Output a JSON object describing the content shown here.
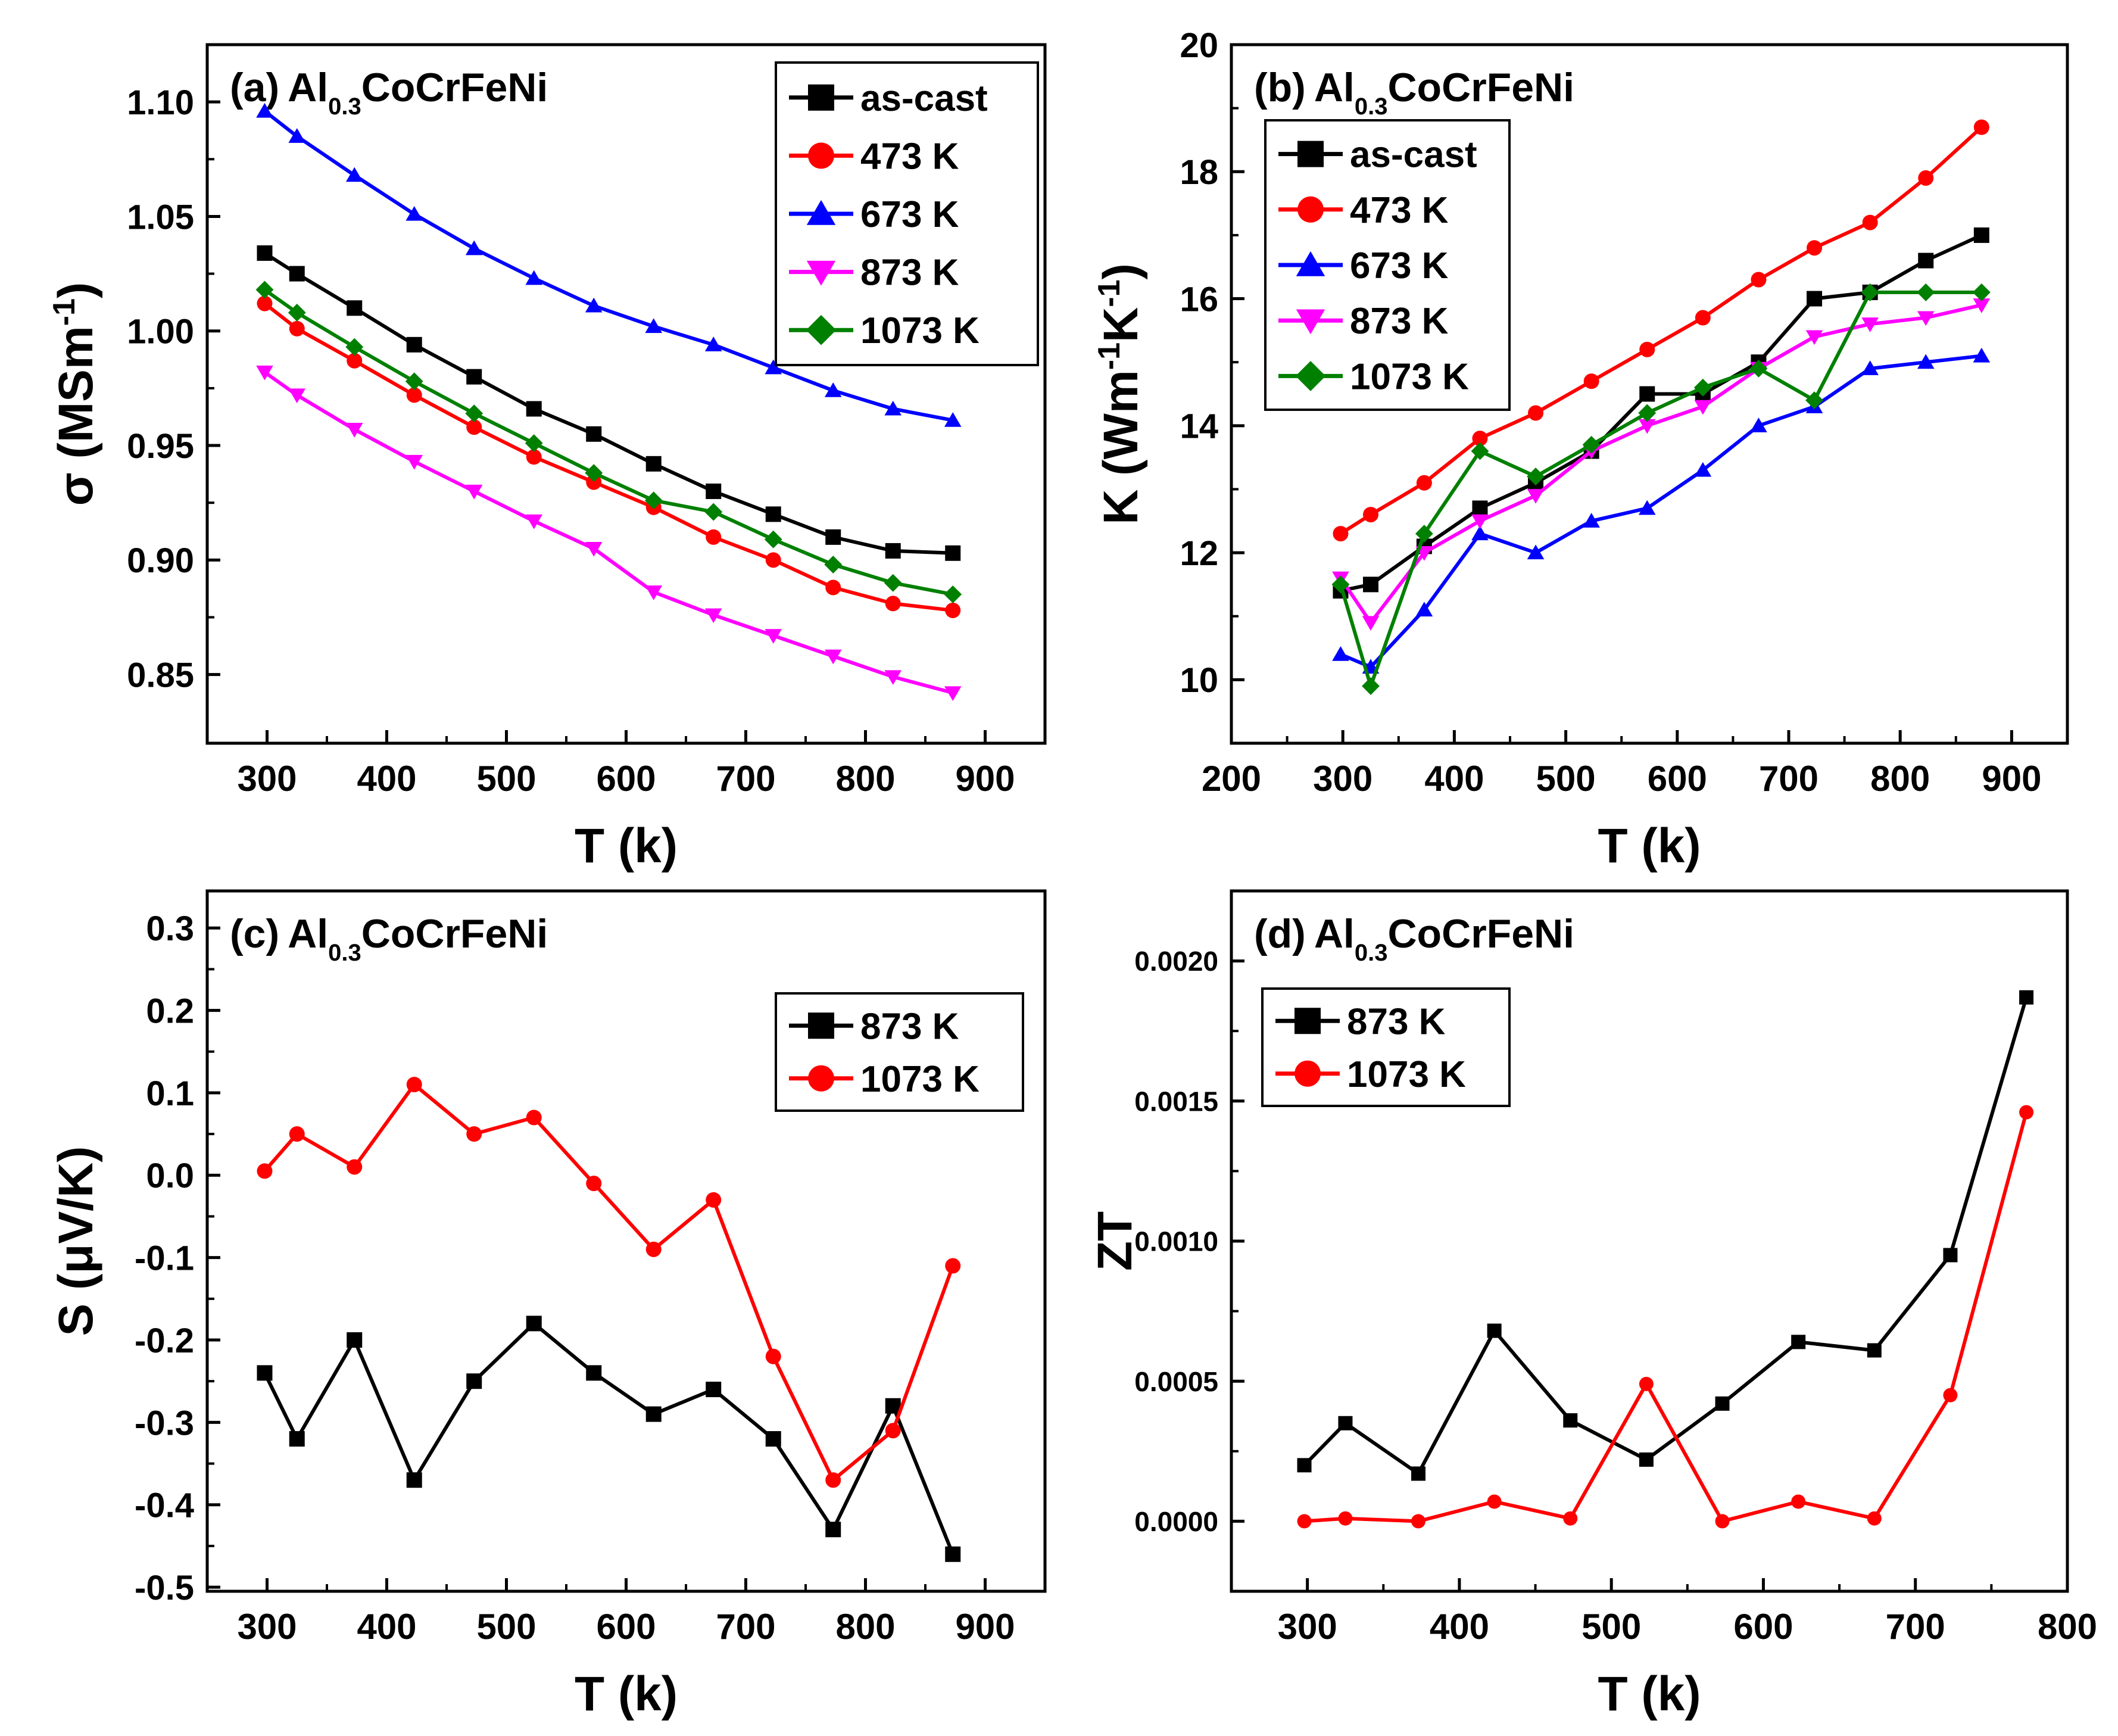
{
  "chart_data": [
    {
      "panel": "(a)",
      "type": "line",
      "title_main": "Al",
      "title_sub": "0.3",
      "title_rest": "CoCrFeNi",
      "xlabel": "T (k)",
      "ylabel": "σ (MSm",
      "ylabel_sup": "-1",
      "ylabel_end": ")",
      "xlim": [
        250,
        950
      ],
      "ylim": [
        0.82,
        1.125
      ],
      "xticks": [
        300,
        400,
        500,
        600,
        700,
        800,
        900
      ],
      "yticks": [
        0.85,
        0.9,
        0.95,
        1.0,
        1.05,
        1.1
      ],
      "ytick_decimals": 2,
      "legend_position": "top-right",
      "x": [
        298,
        325,
        373,
        423,
        473,
        523,
        573,
        623,
        673,
        723,
        773,
        823,
        873
      ],
      "series": [
        {
          "name": "as-cast",
          "color": "#000000",
          "marker": "square",
          "values": [
            1.034,
            1.025,
            1.01,
            0.994,
            0.98,
            0.966,
            0.955,
            0.942,
            0.93,
            0.92,
            0.91,
            0.904,
            0.903
          ]
        },
        {
          "name": "473 K",
          "color": "#ff0000",
          "marker": "circle",
          "values": [
            1.012,
            1.001,
            0.987,
            0.972,
            0.958,
            0.945,
            0.934,
            0.923,
            0.91,
            0.9,
            0.888,
            0.881,
            0.878
          ]
        },
        {
          "name": "673 K",
          "color": "#0000ff",
          "marker": "triangle-up",
          "values": [
            1.096,
            1.085,
            1.068,
            1.051,
            1.036,
            1.023,
            1.011,
            1.002,
            0.994,
            0.984,
            0.974,
            0.966,
            0.961
          ]
        },
        {
          "name": "873 K",
          "color": "#ff00ff",
          "marker": "triangle-down",
          "values": [
            0.982,
            0.972,
            0.957,
            0.943,
            0.93,
            0.917,
            0.905,
            0.886,
            0.876,
            0.867,
            0.858,
            0.849,
            0.842
          ]
        },
        {
          "name": "1073 K",
          "color": "#008000",
          "marker": "diamond",
          "values": [
            1.018,
            1.008,
            0.993,
            0.978,
            0.964,
            0.951,
            0.938,
            0.926,
            0.921,
            0.909,
            0.898,
            0.89,
            0.885
          ]
        }
      ]
    },
    {
      "panel": "(b)",
      "type": "line",
      "title_main": "Al",
      "title_sub": "0.3",
      "title_rest": "CoCrFeNi",
      "xlabel": "T (k)",
      "ylabel": "K (Wm",
      "ylabel_sup": "-1",
      "ylabel_mid": "K",
      "ylabel_sup2": "-1",
      "ylabel_end": ")",
      "xlim": [
        200,
        950
      ],
      "ylim": [
        9.0,
        20.0
      ],
      "xticks": [
        200,
        300,
        400,
        500,
        600,
        700,
        800,
        900
      ],
      "yticks": [
        10,
        12,
        14,
        16,
        18,
        20
      ],
      "ytick_decimals": 0,
      "legend_position": "top-left",
      "x": [
        298,
        325,
        373,
        423,
        473,
        523,
        573,
        623,
        673,
        723,
        773,
        823,
        873
      ],
      "series": [
        {
          "name": "as-cast",
          "color": "#000000",
          "marker": "square",
          "values": [
            11.4,
            11.5,
            12.1,
            12.7,
            13.1,
            13.6,
            14.5,
            14.5,
            15.0,
            16.0,
            16.1,
            16.6,
            17.0
          ]
        },
        {
          "name": "473 K",
          "color": "#ff0000",
          "marker": "circle",
          "values": [
            12.3,
            12.6,
            13.1,
            13.8,
            14.2,
            14.7,
            15.2,
            15.7,
            16.3,
            16.8,
            17.2,
            17.9,
            18.7
          ]
        },
        {
          "name": "673 K",
          "color": "#0000ff",
          "marker": "triangle-up",
          "values": [
            10.4,
            10.2,
            11.1,
            12.3,
            12.0,
            12.5,
            12.7,
            13.3,
            14.0,
            14.3,
            14.9,
            15.0,
            15.1
          ]
        },
        {
          "name": "873 K",
          "color": "#ff00ff",
          "marker": "triangle-down",
          "values": [
            11.6,
            10.9,
            12.0,
            12.5,
            12.9,
            13.6,
            14.0,
            14.3,
            14.9,
            15.4,
            15.6,
            15.7,
            15.9
          ]
        },
        {
          "name": "1073 K",
          "color": "#008000",
          "marker": "diamond",
          "values": [
            11.5,
            9.9,
            12.3,
            13.6,
            13.2,
            13.7,
            14.2,
            14.6,
            14.9,
            14.4,
            16.1,
            16.1,
            16.1
          ]
        }
      ]
    },
    {
      "panel": "(c)",
      "type": "line",
      "title_main": "Al",
      "title_sub": "0.3",
      "title_rest": "CoCrFeNi",
      "xlabel": "T (k)",
      "ylabel": "S (μV/K)",
      "xlim": [
        250,
        950
      ],
      "ylim": [
        -0.505,
        0.345
      ],
      "xticks": [
        300,
        400,
        500,
        600,
        700,
        800,
        900
      ],
      "yticks": [
        -0.5,
        -0.4,
        -0.3,
        -0.2,
        -0.1,
        0.0,
        0.1,
        0.2,
        0.3
      ],
      "ytick_decimals": 1,
      "legend_position": "top-right",
      "x": [
        298,
        325,
        373,
        423,
        473,
        523,
        573,
        623,
        673,
        723,
        773,
        823,
        873
      ],
      "series": [
        {
          "name": "873 K",
          "color": "#000000",
          "marker": "square",
          "values": [
            -0.24,
            -0.32,
            -0.2,
            -0.37,
            -0.25,
            -0.18,
            -0.24,
            -0.29,
            -0.26,
            -0.32,
            -0.43,
            -0.28,
            -0.46
          ]
        },
        {
          "name": "1073 K",
          "color": "#ff0000",
          "marker": "circle",
          "values": [
            0.005,
            0.05,
            0.01,
            0.11,
            0.05,
            0.07,
            -0.01,
            -0.09,
            -0.03,
            -0.22,
            -0.37,
            -0.31,
            -0.11
          ]
        }
      ]
    },
    {
      "panel": "(d)",
      "type": "line",
      "title_main": "Al",
      "title_sub": "0.3",
      "title_rest": "CoCrFeNi",
      "xlabel": "T (k)",
      "ylabel": "ZT",
      "xlim": [
        250,
        800
      ],
      "ylim": [
        -0.00025,
        0.00225
      ],
      "xticks": [
        300,
        400,
        500,
        600,
        700,
        800
      ],
      "yticks": [
        0.0,
        0.0005,
        0.001,
        0.0015,
        0.002
      ],
      "ytick_decimals": 4,
      "legend_position": "top-left",
      "x": [
        298,
        325,
        373,
        423,
        473,
        523,
        573,
        623,
        673,
        723,
        773
      ],
      "series": [
        {
          "name": "873 K",
          "color": "#000000",
          "marker": "square",
          "values": [
            0.0002,
            0.00035,
            0.00017,
            0.00068,
            0.00036,
            0.00022,
            0.00042,
            0.00064,
            0.00061,
            0.00095,
            0.00187
          ]
        },
        {
          "name": "1073 K",
          "color": "#ff0000",
          "marker": "circle",
          "values": [
            0.0,
            1e-05,
            0.0,
            7e-05,
            1e-05,
            0.00049,
            0.0,
            7e-05,
            1e-05,
            0.00045,
            0.00146
          ]
        }
      ]
    }
  ]
}
